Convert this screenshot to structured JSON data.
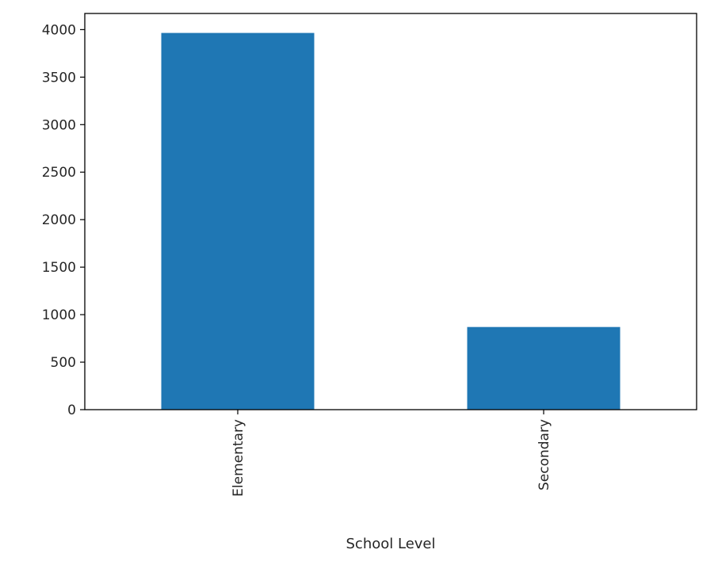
{
  "chart_data": {
    "type": "bar",
    "title": "",
    "xlabel": "School Level",
    "ylabel": "",
    "categories": [
      "Elementary",
      "Secondary"
    ],
    "values": [
      3965,
      870
    ],
    "ylim": [
      0,
      4170
    ],
    "yticks": [
      0,
      500,
      1000,
      1500,
      2000,
      2500,
      3000,
      3500,
      4000
    ],
    "ytick_labels": [
      "0",
      "500",
      "1000",
      "1500",
      "2000",
      "2500",
      "3000",
      "3500",
      "4000"
    ],
    "grid": false,
    "legend": "none",
    "x_tick_rotation": "vertical",
    "bar_color": "#1f77b4",
    "axis_color": "#000000",
    "text_color": "#262626"
  }
}
